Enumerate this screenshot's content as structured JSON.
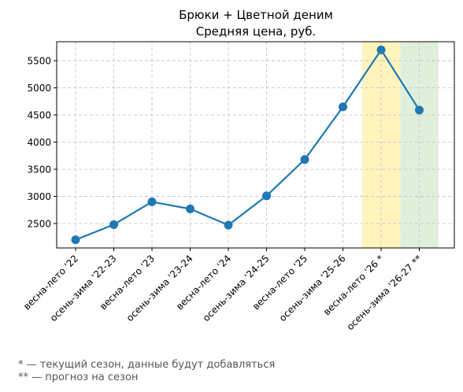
{
  "chart_data": {
    "type": "line",
    "title": "Брюки + Цветной деним",
    "subtitle": "Средняя цена, руб.",
    "xlabel": "",
    "ylabel": "",
    "categories": [
      "весна-лето '22",
      "осень-зима '22-23",
      "весна-лето '23",
      "осень-зима '23-24",
      "весна-лето '24",
      "осень-зима '24-25",
      "весна-лето '25",
      "осень-зима '25-26",
      "весна-лето '26 *",
      "осень-зима '26-27 **"
    ],
    "values": [
      2200,
      2480,
      2900,
      2770,
      2470,
      3010,
      3680,
      4650,
      5700,
      4590
    ],
    "ylim": [
      2050,
      5850
    ],
    "yticks": [
      2500,
      3000,
      3500,
      4000,
      4500,
      5000,
      5500
    ],
    "grid": true,
    "line_color": "#1f77b4",
    "highlights": [
      {
        "category_index": 8,
        "color": "#fff3b0",
        "meaning": "current"
      },
      {
        "category_index": 9,
        "color": "#d9ecd5",
        "meaning": "forecast"
      }
    ]
  },
  "footnotes": {
    "current": "* — текущий сезон, данные будут добавляться",
    "forecast": "** — прогноз на сезон"
  }
}
